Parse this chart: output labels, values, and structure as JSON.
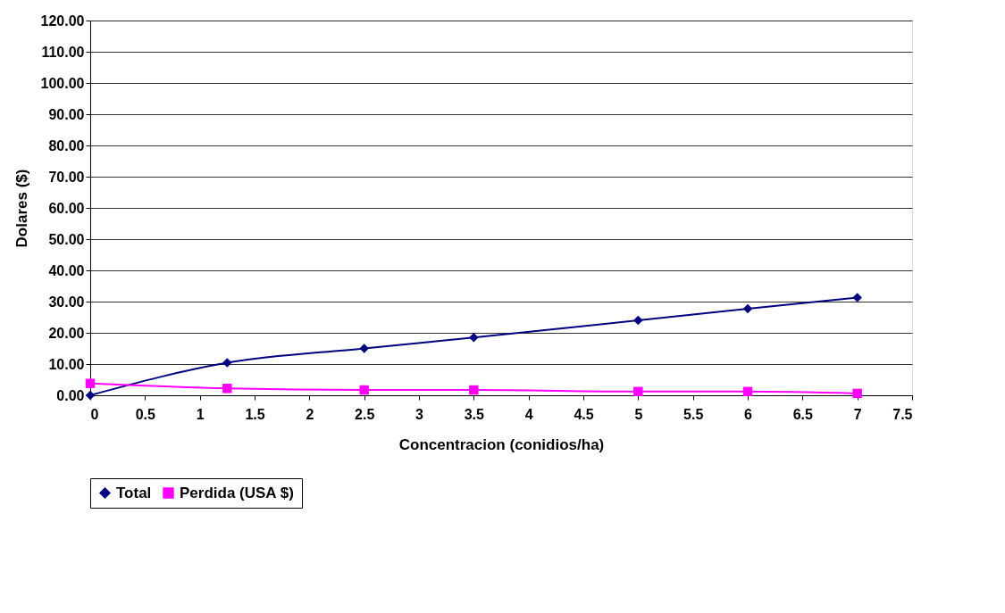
{
  "chart_data": {
    "type": "line",
    "xlabel": "Concentracion (conidios/ha)",
    "ylabel": "Dolares ($)",
    "x": [
      0,
      1.25,
      2.5,
      3.5,
      5,
      6,
      7
    ],
    "series": [
      {
        "name": "Total",
        "color": "#000080",
        "marker": "diamond",
        "values": [
          0,
          10.4,
          15,
          18.5,
          24,
          27.7,
          31.3
        ]
      },
      {
        "name": "Perdida (USA $)",
        "color": "#ff00ff",
        "marker": "square",
        "values": [
          3.8,
          2.2,
          1.7,
          1.7,
          1.2,
          1.2,
          0.6
        ]
      }
    ],
    "xlim": [
      0,
      7.5
    ],
    "xticks": [
      0,
      0.5,
      1,
      1.5,
      2,
      2.5,
      3,
      3.5,
      4,
      4.5,
      5,
      5.5,
      6,
      6.5,
      7,
      7.5
    ],
    "ylim": [
      0,
      120
    ],
    "yticks": [
      {
        "value": 0,
        "label": "0.00"
      },
      {
        "value": 10,
        "label": "10.00"
      },
      {
        "value": 20,
        "label": "20.00"
      },
      {
        "value": 30,
        "label": "30.00"
      },
      {
        "value": 40,
        "label": "40.00"
      },
      {
        "value": 50,
        "label": "50.00"
      },
      {
        "value": 60,
        "label": "60.00"
      },
      {
        "value": 70,
        "label": "70.00"
      },
      {
        "value": 80,
        "label": "80.00"
      },
      {
        "value": 90,
        "label": "90.00"
      },
      {
        "value": 100,
        "label": "100.00"
      },
      {
        "value": 110,
        "label": "110.00"
      },
      {
        "value": 120,
        "label": "120.00"
      }
    ],
    "grid": "y",
    "legend": "bottom",
    "line_style": "solid"
  }
}
